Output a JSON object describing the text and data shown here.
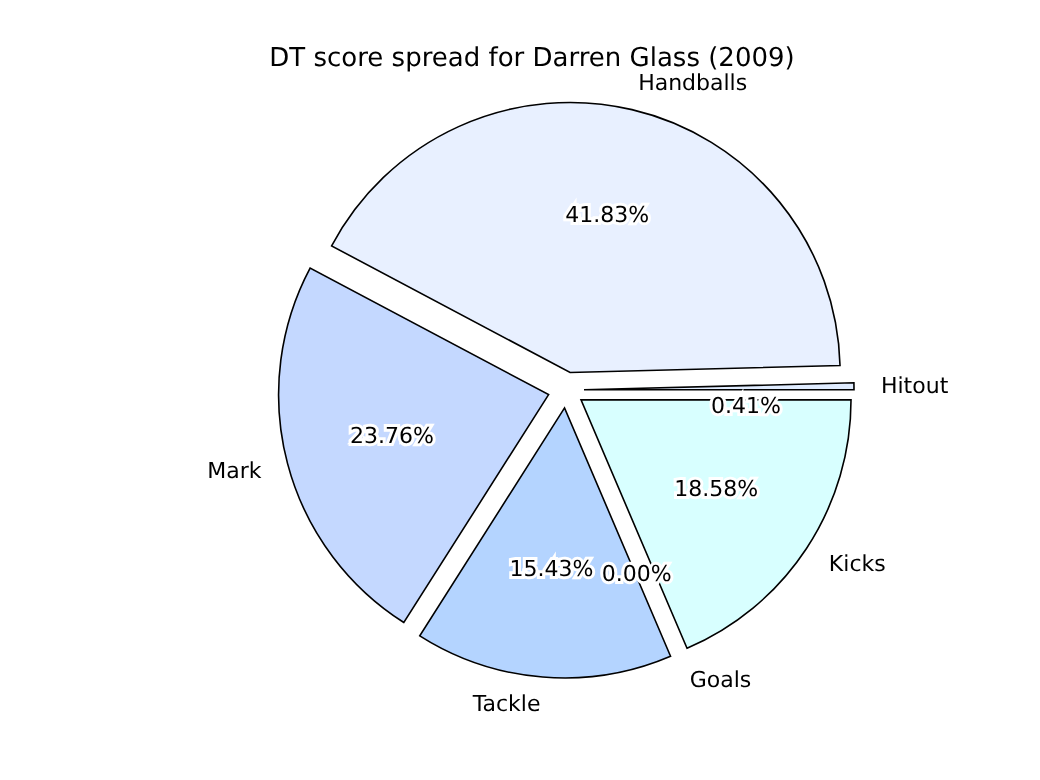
{
  "chart_data": {
    "type": "pie",
    "title": "DT score spread for Darren Glass (2009)",
    "categories": [
      "Hitout",
      "Handballs",
      "Mark",
      "Tackle",
      "Goals",
      "Kicks"
    ],
    "values": [
      0.41,
      41.83,
      23.76,
      15.43,
      0.0,
      18.58
    ],
    "value_labels": [
      "0.41%",
      "41.83%",
      "23.76%",
      "15.43%",
      "0.00%",
      "18.58%"
    ],
    "colors": [
      "#e0ecff",
      "#e8f0ff",
      "#c4d8ff",
      "#b4d4ff",
      "#c8f0ff",
      "#d8ffff"
    ]
  }
}
